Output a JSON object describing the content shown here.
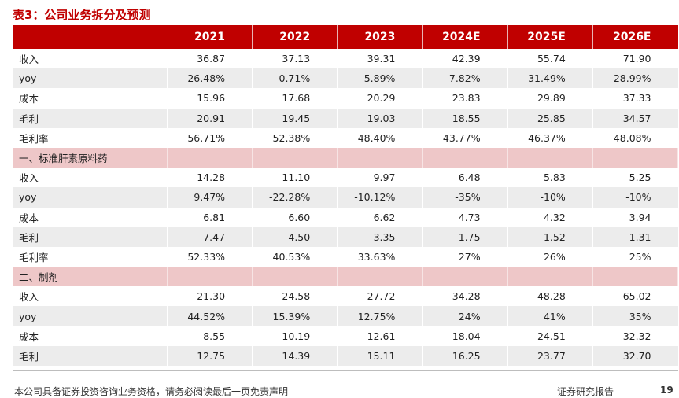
{
  "title": "表3：公司业务拆分及预测",
  "table": {
    "headers": [
      "",
      "2021",
      "2022",
      "2023",
      "2024E",
      "2025E",
      "2026E"
    ],
    "rows": [
      {
        "label": "收入",
        "values": [
          "36.87",
          "37.13",
          "39.31",
          "42.39",
          "55.74",
          "71.90"
        ]
      },
      {
        "label": "yoy",
        "values": [
          "26.48%",
          "0.71%",
          "5.89%",
          "7.82%",
          "31.49%",
          "28.99%"
        ]
      },
      {
        "label": "成本",
        "values": [
          "15.96",
          "17.68",
          "20.29",
          "23.83",
          "29.89",
          "37.33"
        ]
      },
      {
        "label": "毛利",
        "values": [
          "20.91",
          "19.45",
          "19.03",
          "18.55",
          "25.85",
          "34.57"
        ]
      },
      {
        "label": "毛利率",
        "values": [
          "56.71%",
          "52.38%",
          "48.40%",
          "43.77%",
          "46.37%",
          "48.08%"
        ]
      },
      {
        "label": "一、标准肝素原料药",
        "values": [
          "",
          "",
          "",
          "",
          "",
          ""
        ],
        "section": true
      },
      {
        "label": "收入",
        "values": [
          "14.28",
          "11.10",
          "9.97",
          "6.48",
          "5.83",
          "5.25"
        ]
      },
      {
        "label": "yoy",
        "values": [
          "9.47%",
          "-22.28%",
          "-10.12%",
          "-35%",
          "-10%",
          "-10%"
        ]
      },
      {
        "label": "成本",
        "values": [
          "6.81",
          "6.60",
          "6.62",
          "4.73",
          "4.32",
          "3.94"
        ]
      },
      {
        "label": "毛利",
        "values": [
          "7.47",
          "4.50",
          "3.35",
          "1.75",
          "1.52",
          "1.31"
        ]
      },
      {
        "label": "毛利率",
        "values": [
          "52.33%",
          "40.53%",
          "33.63%",
          "27%",
          "26%",
          "25%"
        ]
      },
      {
        "label": "二、制剂",
        "values": [
          "",
          "",
          "",
          "",
          "",
          ""
        ],
        "section": true
      },
      {
        "label": "收入",
        "values": [
          "21.30",
          "24.58",
          "27.72",
          "34.28",
          "48.28",
          "65.02"
        ]
      },
      {
        "label": "yoy",
        "values": [
          "44.52%",
          "15.39%",
          "12.75%",
          "24%",
          "41%",
          "35%"
        ]
      },
      {
        "label": "成本",
        "values": [
          "8.55",
          "10.19",
          "12.61",
          "18.04",
          "24.51",
          "32.32"
        ]
      },
      {
        "label": "毛利",
        "values": [
          "12.75",
          "14.39",
          "15.11",
          "16.25",
          "23.77",
          "32.70"
        ]
      }
    ]
  },
  "footer": {
    "disclaimer": "本公司具备证券投资咨询业务资格，请务必阅读最后一页免责声明",
    "report_type": "证券研究报告",
    "page": "19"
  },
  "colors": {
    "header_bg": "#c00000",
    "section_bg": "#eec7c8",
    "stripe_bg": "#ececec",
    "title": "#c00000"
  }
}
